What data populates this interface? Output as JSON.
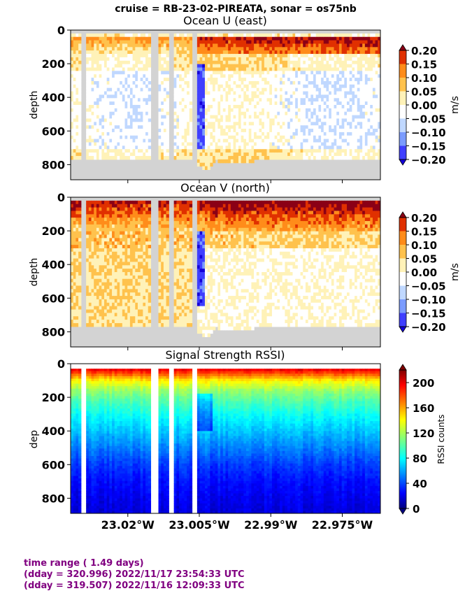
{
  "suptitle": "cruise = RB-23-02-PIREATA,  sonar = os75nb",
  "footer": {
    "line1": "time range ( 1.49 days)",
    "line2": "(dday = 320.996) 2022/11/17 23:54:33 UTC",
    "line3": "(dday = 319.507) 2022/11/16 12:09:33 UTC"
  },
  "chart_data": [
    {
      "type": "heatmap",
      "title": "Ocean U (east)",
      "ylabel": "depth",
      "yticks": [
        0,
        200,
        400,
        600,
        800
      ],
      "ylim": [
        890,
        0
      ],
      "x_axis": "longitude, no tick labels shown",
      "xlim": [
        "23.032°W",
        "22.967°W"
      ],
      "colorbar": {
        "label": "m/s",
        "ticks": [
          "0.20",
          "0.15",
          "0.10",
          "0.05",
          "0.00",
          "−0.05",
          "−0.10",
          "−0.15",
          "−0.20"
        ],
        "range": [
          -0.2,
          0.2
        ],
        "colors": [
          "#1400d9",
          "#3f3fff",
          "#7b9cff",
          "#c0d8ff",
          "#ffffff",
          "#fff2b8",
          "#ffc24d",
          "#ff8c1a",
          "#e03000",
          "#8b0016"
        ]
      },
      "data_gaps_lon": [
        "23.0295°W",
        "23.0145°W",
        "23.0105°W",
        "23.0060°W"
      ],
      "notes": "strong positive near surface (0-100 m) toward east; mostly near zero to slightly negative at depth"
    },
    {
      "type": "heatmap",
      "title": "Ocean V (north)",
      "ylabel": "depth",
      "yticks": [
        0,
        200,
        400,
        600,
        800
      ],
      "ylim": [
        890,
        0
      ],
      "xlim": [
        "23.032°W",
        "22.967°W"
      ],
      "colorbar": {
        "label": "m/s",
        "ticks": [
          "0.20",
          "0.15",
          "0.10",
          "0.05",
          "0.00",
          "−0.05",
          "−0.10",
          "−0.15",
          "−0.20"
        ],
        "range": [
          -0.2,
          0.2
        ]
      },
      "notes": "strong positive (northward) 0-200 m, weak positive 300-700 m in west"
    },
    {
      "type": "heatmap",
      "title": "Signal Strength RSSI)",
      "ylabel": "dep",
      "yticks": [
        0,
        200,
        400,
        600,
        800
      ],
      "ylim": [
        890,
        0
      ],
      "xlabel_ticks": [
        "23.02°W",
        "23.005°W",
        "22.99°W",
        "22.975°W"
      ],
      "xlim": [
        "23.032°W",
        "22.967°W"
      ],
      "colorbar": {
        "label": "RSSI counts",
        "ticks": [
          "200",
          "160",
          "120",
          "80",
          "40",
          "0"
        ],
        "range": [
          0,
          220
        ]
      },
      "profile": [
        {
          "depth": 30,
          "rssi": 200
        },
        {
          "depth": 60,
          "rssi": 175
        },
        {
          "depth": 100,
          "rssi": 140
        },
        {
          "depth": 160,
          "rssi": 115
        },
        {
          "depth": 220,
          "rssi": 100
        },
        {
          "depth": 300,
          "rssi": 85
        },
        {
          "depth": 400,
          "rssi": 70
        },
        {
          "depth": 500,
          "rssi": 55
        },
        {
          "depth": 600,
          "rssi": 40
        },
        {
          "depth": 700,
          "rssi": 30
        },
        {
          "depth": 800,
          "rssi": 24
        },
        {
          "depth": 890,
          "rssi": 20
        }
      ]
    }
  ]
}
